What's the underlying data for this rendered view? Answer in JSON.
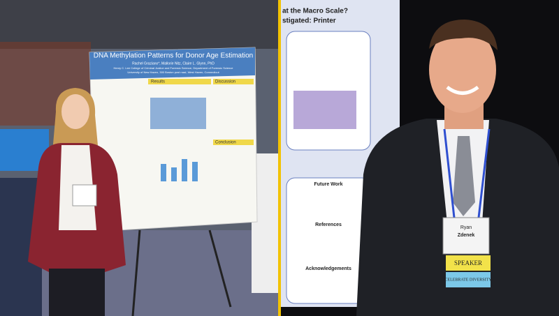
{
  "left_photo": {
    "poster": {
      "title": "DNA Methylation Patterns for Donor Age Estimation",
      "authors": "Rachel Graziano*, Mallorie Nitz, Claire L. Glynn, PhD",
      "affiliation": "Henry C. Lee College of Criminal Justice and Forensic Science, Department of Forensic Science",
      "address": "University of New Haven, 300 Boston post road, West Haven, Connecticut",
      "sections": [
        "Results",
        "Discussion",
        "Conclusion"
      ]
    }
  },
  "right_photo": {
    "poster": {
      "heading_lines": [
        "at the Macro Scale?",
        "stigated: Printer"
      ],
      "sections": [
        "Future Work",
        "References",
        "Acknowledgements"
      ]
    },
    "badge": {
      "first_name": "Ryan",
      "last_name": "Zdenek",
      "ribbons": [
        "SPEAKER",
        "CELEBRATE DIVERSITY"
      ]
    }
  }
}
